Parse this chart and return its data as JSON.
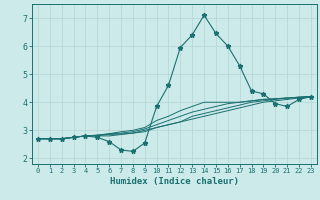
{
  "xlabel": "Humidex (Indice chaleur)",
  "ylabel": "",
  "background_color": "#cdeaea",
  "grid_color": "#b8d8d8",
  "line_color": "#1a7070",
  "xlim": [
    -0.5,
    23.5
  ],
  "ylim": [
    1.8,
    7.5
  ],
  "xticks": [
    0,
    1,
    2,
    3,
    4,
    5,
    6,
    7,
    8,
    9,
    10,
    11,
    12,
    13,
    14,
    15,
    16,
    17,
    18,
    19,
    20,
    21,
    22,
    23
  ],
  "yticks": [
    2,
    3,
    4,
    5,
    6,
    7
  ],
  "lines": [
    [
      2.7,
      2.7,
      2.7,
      2.75,
      2.8,
      2.75,
      2.6,
      2.3,
      2.25,
      2.55,
      3.85,
      4.6,
      5.95,
      6.4,
      7.1,
      6.45,
      6.0,
      5.3,
      4.4,
      4.3,
      3.95,
      3.85,
      4.1,
      4.2
    ],
    [
      2.7,
      2.7,
      2.7,
      2.75,
      2.8,
      2.8,
      2.8,
      2.85,
      2.9,
      3.0,
      3.1,
      3.2,
      3.3,
      3.4,
      3.5,
      3.6,
      3.7,
      3.8,
      3.9,
      4.0,
      4.05,
      4.1,
      4.15,
      4.2
    ],
    [
      2.7,
      2.7,
      2.7,
      2.75,
      2.8,
      2.82,
      2.85,
      2.87,
      2.9,
      2.95,
      3.1,
      3.2,
      3.3,
      3.5,
      3.6,
      3.7,
      3.8,
      3.9,
      4.0,
      4.05,
      4.1,
      4.15,
      4.18,
      4.2
    ],
    [
      2.7,
      2.7,
      2.7,
      2.75,
      2.8,
      2.82,
      2.87,
      2.9,
      2.95,
      3.05,
      3.2,
      3.35,
      3.5,
      3.65,
      3.75,
      3.85,
      3.95,
      4.0,
      4.05,
      4.1,
      4.13,
      4.15,
      4.18,
      4.2
    ],
    [
      2.7,
      2.7,
      2.7,
      2.75,
      2.8,
      2.83,
      2.88,
      2.95,
      3.0,
      3.1,
      3.35,
      3.5,
      3.7,
      3.85,
      4.0,
      4.0,
      4.0,
      4.0,
      4.05,
      4.1,
      4.12,
      4.15,
      4.18,
      4.2
    ]
  ],
  "marker": "*",
  "markersize": 3.5,
  "linewidth_main": 0.8,
  "linewidth_other": 0.7,
  "xlabel_fontsize": 6.5,
  "xtick_fontsize": 5.0,
  "ytick_fontsize": 6.0
}
